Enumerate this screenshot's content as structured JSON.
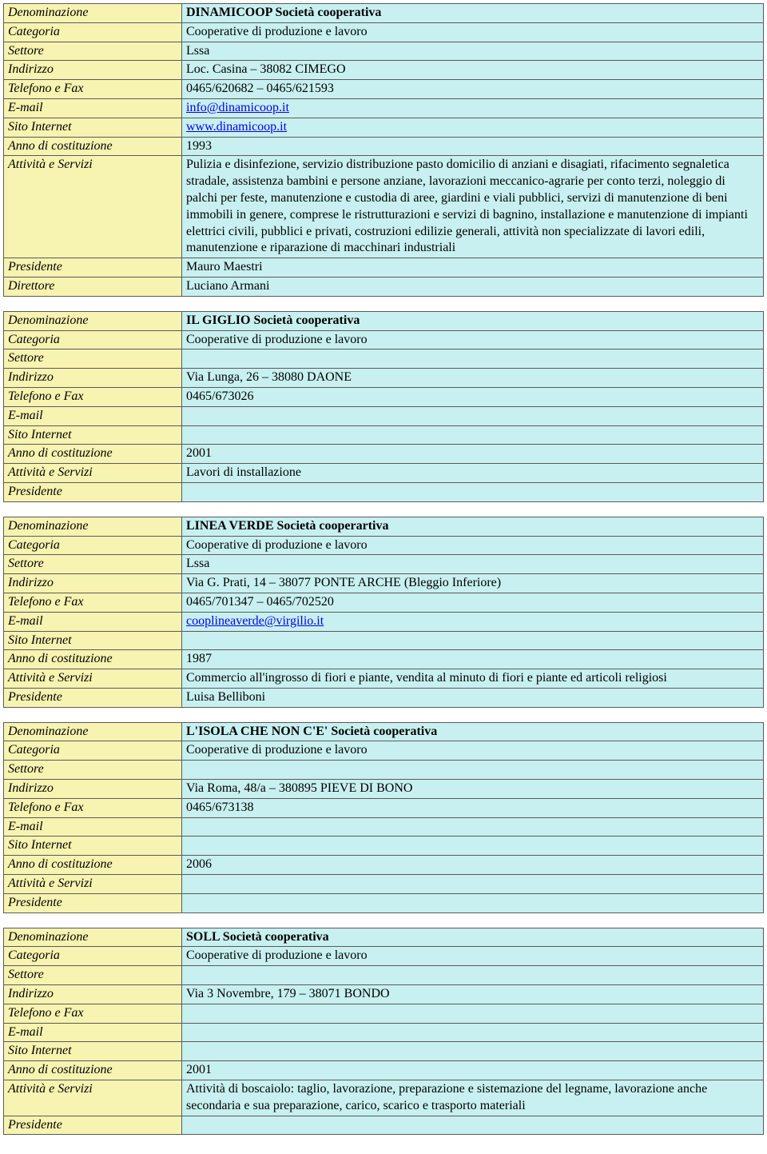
{
  "labels": {
    "denominazione": "Denominazione",
    "categoria": "Categoria",
    "settore": "Settore",
    "indirizzo": "Indirizzo",
    "telefono": "Telefono e Fax",
    "email": "E-mail",
    "sito": "Sito Internet",
    "anno": "Anno di costituzione",
    "attivita": "Attività e Servizi",
    "presidente": "Presidente",
    "direttore": "Direttore"
  },
  "entries": [
    {
      "denominazione": "DINAMICOOP  Società cooperativa",
      "categoria": "Cooperative di produzione e lavoro",
      "settore": "Lssa",
      "indirizzo": "Loc. Casina – 38082 CIMEGO",
      "telefono": "0465/620682 – 0465/621593",
      "email": "info@dinamicoop.it",
      "email_is_link": true,
      "sito": "www.dinamicoop.it",
      "sito_is_link": true,
      "anno": "1993",
      "attivita": "Pulizia e disinfezione, servizio distribuzione pasto domicilio di anziani e disagiati, rifacimento segnaletica stradale, assistenza bambini e persone anziane, lavorazioni meccanico-agrarie per conto terzi, noleggio di palchi per feste, manutenzione e custodia di aree, giardini e viali pubblici, servizi di manutenzione di beni immobili in genere, comprese le ristrutturazioni e servizi di bagnino, installazione e manutenzione di impianti elettrici civili, pubblici e privati, costruzioni edilizie generali, attività non specializzate di lavori edili, manutenzione e riparazione di macchinari industriali",
      "presidente": "Mauro Maestri",
      "direttore": "Luciano Armani",
      "has_direttore": true
    },
    {
      "denominazione": "IL GIGLIO  Società cooperativa",
      "categoria": "Cooperative di produzione e lavoro",
      "settore": "",
      "indirizzo": "Via Lunga, 26 – 38080 DAONE",
      "telefono": "0465/673026",
      "email": "",
      "email_is_link": false,
      "sito": "",
      "sito_is_link": false,
      "anno": "2001",
      "attivita": "Lavori di installazione",
      "presidente": "",
      "has_direttore": false
    },
    {
      "denominazione": "LINEA VERDE  Società cooperartiva",
      "categoria": "Cooperative di produzione e lavoro",
      "settore": "Lssa",
      "indirizzo": "Via G. Prati, 14 – 38077 PONTE ARCHE (Bleggio Inferiore)",
      "telefono": "0465/701347 – 0465/702520",
      "email": "cooplineaverde@virgilio.it",
      "email_is_link": true,
      "sito": "",
      "sito_is_link": false,
      "anno": "1987",
      "attivita": "Commercio all'ingrosso di fiori e piante, vendita al minuto di fiori e piante ed articoli religiosi",
      "presidente": "Luisa Belliboni",
      "has_direttore": false
    },
    {
      "denominazione": "L'ISOLA CHE NON C'E'  Società cooperativa",
      "categoria": "Cooperative di produzione e lavoro",
      "settore": "",
      "indirizzo": "Via Roma, 48/a – 380895 PIEVE DI BONO",
      "telefono": "0465/673138",
      "email": "",
      "email_is_link": false,
      "sito": "",
      "sito_is_link": false,
      "anno": "2006",
      "attivita": "",
      "presidente": "",
      "has_direttore": false
    },
    {
      "denominazione": "SOLL  Società cooperativa",
      "categoria": "Cooperative di produzione e lavoro",
      "settore": "",
      "indirizzo": "Via 3 Novembre, 179 – 38071 BONDO",
      "telefono": "",
      "email": "",
      "email_is_link": false,
      "sito": "",
      "sito_is_link": false,
      "anno": "2001",
      "attivita": "Attività di boscaiolo: taglio, lavorazione, preparazione e sistemazione del legname, lavorazione anche secondaria e sua preparazione, carico, scarico e trasporto materiali",
      "presidente": "",
      "has_direttore": false
    }
  ]
}
